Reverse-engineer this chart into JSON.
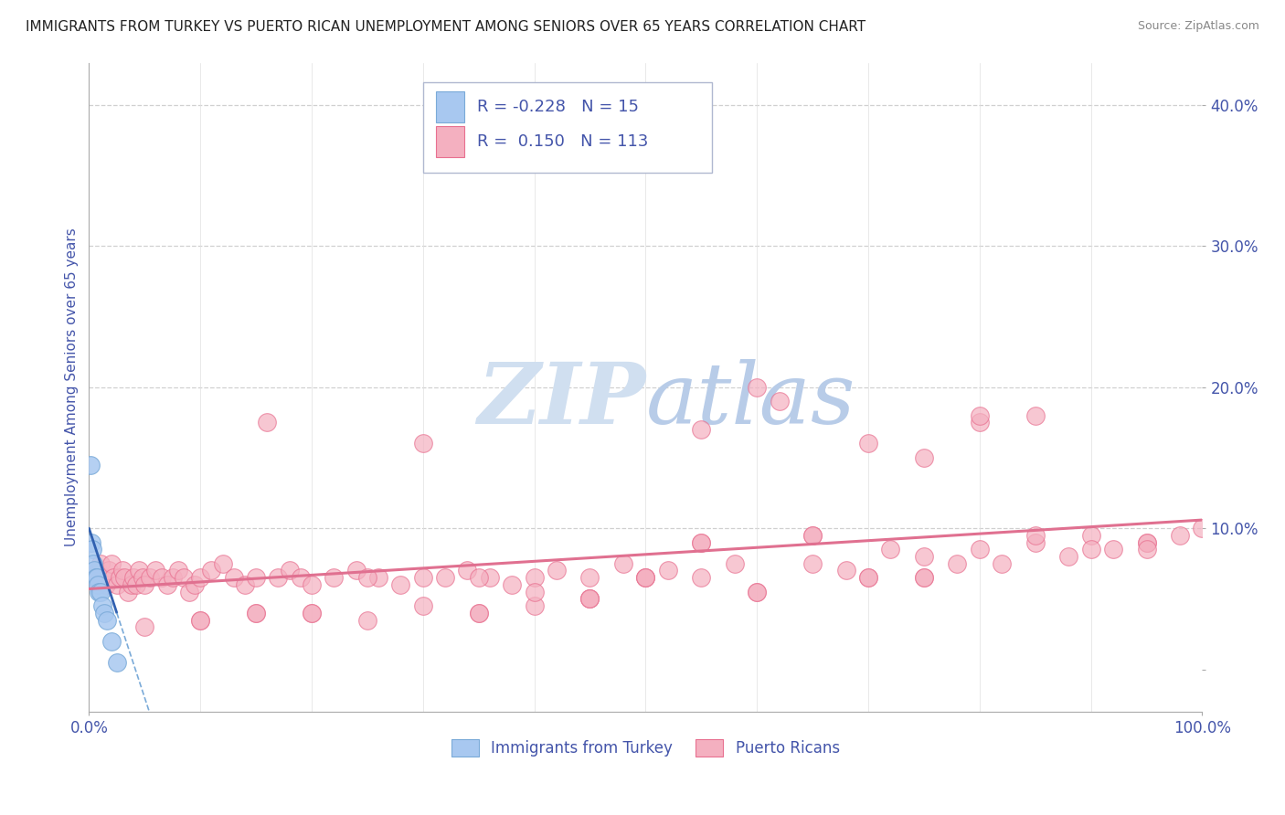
{
  "title": "IMMIGRANTS FROM TURKEY VS PUERTO RICAN UNEMPLOYMENT AMONG SENIORS OVER 65 YEARS CORRELATION CHART",
  "source": "Source: ZipAtlas.com",
  "ylabel": "Unemployment Among Seniors over 65 years",
  "ytick_vals": [
    0.0,
    0.1,
    0.2,
    0.3,
    0.4
  ],
  "ytick_labels": [
    "",
    "10.0%",
    "20.0%",
    "30.0%",
    "40.0%"
  ],
  "xlim": [
    0.0,
    1.0
  ],
  "ylim": [
    -0.03,
    0.43
  ],
  "legend_r_turkey": "-0.228",
  "legend_n_turkey": "15",
  "legend_r_puerto": "0.150",
  "legend_n_puerto": "113",
  "turkey_color": "#a8c8f0",
  "turkey_edge_color": "#7aaad8",
  "puerto_color": "#f4b0c0",
  "puerto_edge_color": "#e87090",
  "trend_turkey_solid_color": "#3060b0",
  "trend_turkey_dashed_color": "#7aaad8",
  "trend_puerto_color": "#e07090",
  "watermark_color": "#d0dff0",
  "background_color": "#ffffff",
  "grid_color": "#d0d0d0",
  "title_color": "#222222",
  "axis_label_color": "#4455aa",
  "tick_color": "#4455aa",
  "turkey_points_x": [
    0.001,
    0.002,
    0.003,
    0.004,
    0.005,
    0.006,
    0.007,
    0.008,
    0.009,
    0.01,
    0.012,
    0.014,
    0.016,
    0.02,
    0.025
  ],
  "turkey_points_y": [
    0.145,
    0.09,
    0.085,
    0.075,
    0.07,
    0.065,
    0.065,
    0.06,
    0.055,
    0.055,
    0.045,
    0.04,
    0.035,
    0.02,
    0.005
  ],
  "puerto_points_x": [
    0.005,
    0.008,
    0.01,
    0.012,
    0.015,
    0.018,
    0.02,
    0.022,
    0.025,
    0.028,
    0.03,
    0.032,
    0.035,
    0.038,
    0.04,
    0.042,
    0.045,
    0.048,
    0.05,
    0.055,
    0.06,
    0.065,
    0.07,
    0.075,
    0.08,
    0.085,
    0.09,
    0.095,
    0.1,
    0.11,
    0.12,
    0.13,
    0.14,
    0.15,
    0.16,
    0.17,
    0.18,
    0.19,
    0.2,
    0.22,
    0.24,
    0.26,
    0.28,
    0.3,
    0.32,
    0.34,
    0.36,
    0.38,
    0.4,
    0.42,
    0.45,
    0.48,
    0.5,
    0.52,
    0.55,
    0.58,
    0.6,
    0.62,
    0.65,
    0.68,
    0.7,
    0.72,
    0.75,
    0.78,
    0.8,
    0.82,
    0.85,
    0.88,
    0.9,
    0.92,
    0.95,
    0.98,
    1.0,
    0.25,
    0.35,
    0.45,
    0.55,
    0.65,
    0.75,
    0.85,
    0.95,
    0.1,
    0.2,
    0.3,
    0.4,
    0.5,
    0.6,
    0.7,
    0.8,
    0.9,
    0.15,
    0.25,
    0.35,
    0.45,
    0.55,
    0.65,
    0.75,
    0.85,
    0.95,
    0.4,
    0.6,
    0.8,
    0.5,
    0.7,
    0.3,
    0.2,
    0.1,
    0.05,
    0.15,
    0.45,
    0.75,
    0.55,
    0.35
  ],
  "puerto_points_y": [
    0.065,
    0.07,
    0.075,
    0.065,
    0.06,
    0.07,
    0.075,
    0.065,
    0.06,
    0.065,
    0.07,
    0.065,
    0.055,
    0.06,
    0.065,
    0.06,
    0.07,
    0.065,
    0.06,
    0.065,
    0.07,
    0.065,
    0.06,
    0.065,
    0.07,
    0.065,
    0.055,
    0.06,
    0.065,
    0.07,
    0.075,
    0.065,
    0.06,
    0.065,
    0.175,
    0.065,
    0.07,
    0.065,
    0.06,
    0.065,
    0.07,
    0.065,
    0.06,
    0.16,
    0.065,
    0.07,
    0.065,
    0.06,
    0.065,
    0.07,
    0.065,
    0.075,
    0.065,
    0.07,
    0.065,
    0.075,
    0.055,
    0.19,
    0.075,
    0.07,
    0.16,
    0.085,
    0.08,
    0.075,
    0.085,
    0.075,
    0.09,
    0.08,
    0.095,
    0.085,
    0.09,
    0.095,
    0.1,
    0.065,
    0.04,
    0.05,
    0.09,
    0.095,
    0.065,
    0.18,
    0.09,
    0.035,
    0.04,
    0.045,
    0.045,
    0.065,
    0.055,
    0.065,
    0.175,
    0.085,
    0.04,
    0.035,
    0.04,
    0.05,
    0.09,
    0.095,
    0.065,
    0.095,
    0.085,
    0.055,
    0.2,
    0.18,
    0.065,
    0.065,
    0.065,
    0.04,
    0.035,
    0.03,
    0.04,
    0.05,
    0.15,
    0.17,
    0.065
  ]
}
